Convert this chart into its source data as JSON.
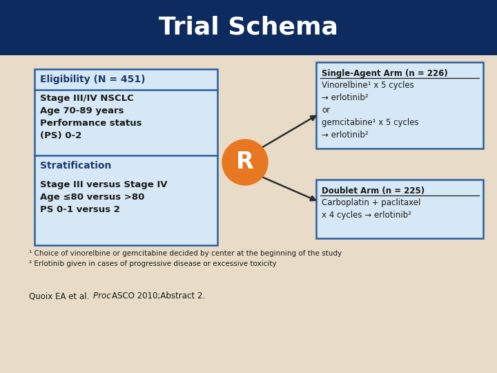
{
  "title": "Trial Schema",
  "title_color": "#FFFFFF",
  "title_bg_color": "#0D2B5E",
  "body_bg_color": "#E8DCC8",
  "box_fill_color": "#D6E8F5",
  "box_edge_color": "#2B5DA0",
  "eligibility_header": "Eligibility (N = 451)",
  "eligibility_body": "Stage III/IV NSCLC\nAge 70-89 years\nPerformance status\n(PS) 0-2",
  "stratification_header": "Stratification",
  "stratification_body": "Stage III versus Stage IV\nAge ≤80 versus >80\nPS 0-1 versus 2",
  "R_color": "#E87722",
  "R_text_color": "#FFFFFF",
  "single_agent_title": "Single-Agent Arm (n = 226)",
  "single_agent_body": "Vinorelbine¹ x 5 cycles\n→ erlotinib²\nor\ngemcitabine¹ x 5 cycles\n→ erlotinib²",
  "doublet_title": "Doublet Arm (n = 225)",
  "doublet_body": "Carboplatin + paclitaxel\nx 4 cycles → erlotinib²",
  "footnote1": "¹ Choice of vinorelbine or gemcitabine decided by center at the beginning of the study",
  "footnote2": "² Erlotinib given in cases of progressive disease or excessive toxicity",
  "header_text_color": "#1A3A6E",
  "body_text_color": "#1A1A1A",
  "arrow_color": "#2B2B2B"
}
